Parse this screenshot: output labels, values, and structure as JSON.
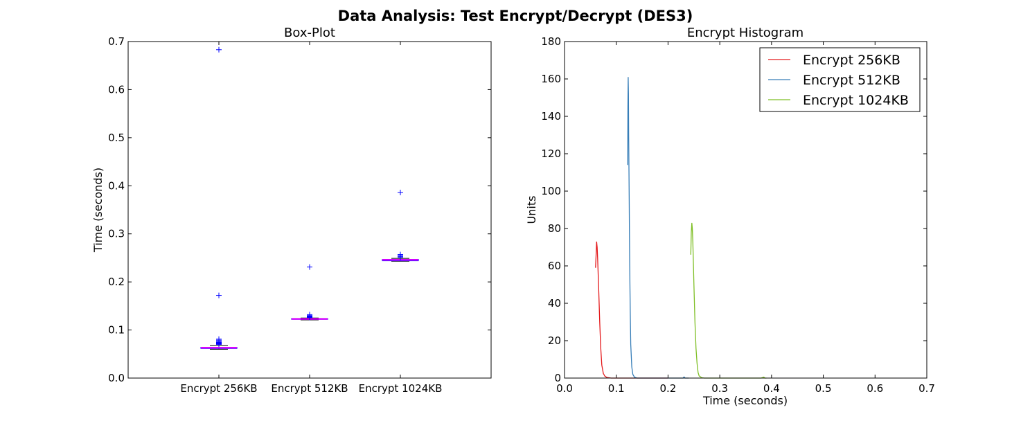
{
  "figure": {
    "suptitle": "Data Analysis: Test Encrypt/Decrypt (DES3)"
  },
  "chart_data": [
    {
      "type": "box",
      "title": "Box-Plot",
      "xlabel": "",
      "ylabel": "Time (seconds)",
      "ylim": [
        0,
        0.7
      ],
      "yticks": [
        "0.0",
        "0.1",
        "0.2",
        "0.3",
        "0.4",
        "0.5",
        "0.6",
        "0.7"
      ],
      "categories": [
        "Encrypt 256KB",
        "Encrypt 512KB",
        "Encrypt 1024KB"
      ],
      "grid": false,
      "colors": {
        "box": "#0000ff",
        "median": "#ff00ff",
        "whisker": "#000000",
        "flier": "#0000ff"
      },
      "boxes": [
        {
          "name": "Encrypt 256KB",
          "whislo": 0.06,
          "q1": 0.0615,
          "median": 0.063,
          "q3": 0.064,
          "whishi": 0.068,
          "fliers": [
            0.683,
            0.172,
            0.081,
            0.079,
            0.077,
            0.075,
            0.074,
            0.073,
            0.072,
            0.071,
            0.07
          ]
        },
        {
          "name": "Encrypt 512KB",
          "whislo": 0.121,
          "q1": 0.122,
          "median": 0.123,
          "q3": 0.124,
          "whishi": 0.125,
          "fliers": [
            0.231,
            0.132,
            0.13,
            0.129,
            0.128,
            0.127,
            0.126
          ]
        },
        {
          "name": "Encrypt 1024KB",
          "whislo": 0.243,
          "q1": 0.244,
          "median": 0.246,
          "q3": 0.247,
          "whishi": 0.249,
          "fliers": [
            0.386,
            0.257,
            0.255,
            0.253,
            0.251
          ]
        }
      ]
    },
    {
      "type": "line",
      "title": "Encrypt Histogram",
      "xlabel": "Time (seconds)",
      "ylabel": "Units",
      "xlim": [
        0,
        0.7
      ],
      "ylim": [
        0,
        180
      ],
      "xticks": [
        "0.0",
        "0.1",
        "0.2",
        "0.3",
        "0.4",
        "0.5",
        "0.6",
        "0.7"
      ],
      "yticks": [
        "0",
        "20",
        "40",
        "60",
        "80",
        "100",
        "120",
        "140",
        "160",
        "180"
      ],
      "grid": false,
      "legend_position": "top-right",
      "series": [
        {
          "name": "Encrypt 256KB",
          "color": "#e41a1c",
          "x": [
            0.06,
            0.061,
            0.062,
            0.063,
            0.064,
            0.066,
            0.068,
            0.07,
            0.072,
            0.075,
            0.078,
            0.082,
            0.09,
            0.1,
            0.12,
            0.15,
            0.18,
            0.2
          ],
          "y": [
            59,
            66,
            73,
            70,
            64,
            48,
            30,
            16,
            7,
            2.5,
            1,
            0.3,
            0,
            0,
            0,
            0,
            0,
            0
          ]
        },
        {
          "name": "Encrypt 512KB",
          "color": "#377eb8",
          "x": [
            0.122,
            0.1225,
            0.123,
            0.1235,
            0.124,
            0.125,
            0.126,
            0.127,
            0.128,
            0.13,
            0.132,
            0.135,
            0.14,
            0.15,
            0.2,
            0.229,
            0.231,
            0.233,
            0.24
          ],
          "y": [
            114,
            145,
            161,
            152,
            130,
            95,
            60,
            35,
            18,
            6,
            2,
            0.5,
            0,
            0,
            0,
            0,
            0.6,
            0,
            0
          ]
        },
        {
          "name": "Encrypt 1024KB",
          "color": "#7fbf26",
          "x": [
            0.244,
            0.245,
            0.246,
            0.247,
            0.248,
            0.25,
            0.252,
            0.254,
            0.256,
            0.258,
            0.26,
            0.265,
            0.27,
            0.3,
            0.38,
            0.385,
            0.387,
            0.39
          ],
          "y": [
            66,
            78,
            83,
            80,
            72,
            50,
            30,
            16,
            8,
            3,
            1.2,
            0.2,
            0,
            0,
            0,
            0.5,
            0,
            0
          ]
        }
      ]
    }
  ]
}
